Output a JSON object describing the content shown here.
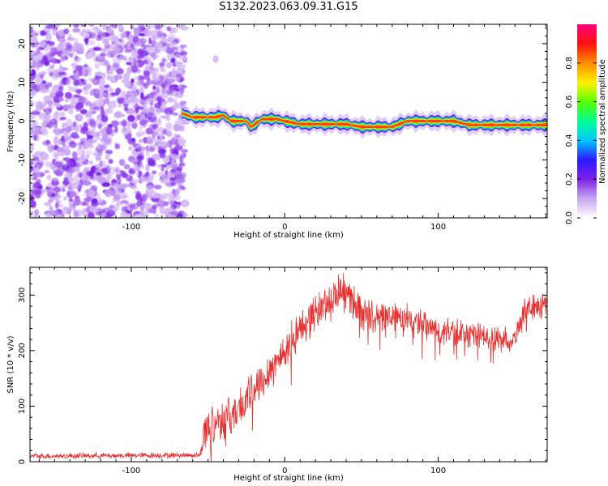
{
  "figure_title": "S132.2023.063.09.31.G15",
  "chart_data": [
    {
      "type": "heatmap",
      "xlabel": "Height of straight line (km)",
      "ylabel": "Frequency (Hz)",
      "xlim": [
        -166,
        171
      ],
      "ylim": [
        -25,
        25
      ],
      "x_ticks": [
        -100,
        0,
        100
      ],
      "y_ticks": [
        -20,
        -10,
        0,
        10,
        20
      ],
      "colorbar": {
        "label": "Normalized spectral amplitude",
        "range": [
          0,
          1
        ],
        "ticks": [
          0.0,
          0.2,
          0.4,
          0.6,
          0.8
        ],
        "colormap": [
          "#ffffff",
          "#c9a6f2",
          "#7d1fe6",
          "#2a1bff",
          "#00c8ff",
          "#00ff90",
          "#5aff00",
          "#fff000",
          "#ff8c00",
          "#ff1010",
          "#ff0080"
        ]
      },
      "noise_region_x": [
        -166,
        -67
      ],
      "signal_track": [
        {
          "x": -67,
          "freq": 2.0
        },
        {
          "x": -60,
          "freq": 1.0
        },
        {
          "x": -45,
          "freq": 1.0
        },
        {
          "x": -40,
          "freq": 1.5
        },
        {
          "x": -35,
          "freq": 0.0
        },
        {
          "x": -25,
          "freq": 0.0
        },
        {
          "x": -22,
          "freq": -1.5
        },
        {
          "x": -15,
          "freq": 0.5
        },
        {
          "x": -5,
          "freq": 0.5
        },
        {
          "x": 0,
          "freq": 0.0
        },
        {
          "x": 10,
          "freq": -0.8
        },
        {
          "x": 40,
          "freq": -0.8
        },
        {
          "x": 50,
          "freq": -1.5
        },
        {
          "x": 70,
          "freq": -1.5
        },
        {
          "x": 80,
          "freq": 0.0
        },
        {
          "x": 110,
          "freq": 0.0
        },
        {
          "x": 120,
          "freq": -1.0
        },
        {
          "x": 140,
          "freq": -1.0
        },
        {
          "x": 150,
          "freq": -1.0
        },
        {
          "x": 171,
          "freq": -1.0
        }
      ],
      "isolated_blob": {
        "x": -45,
        "freq": 16
      }
    },
    {
      "type": "line",
      "xlabel": "Height of straight line (km)",
      "ylabel": "SNR (10 * v/v)",
      "xlim": [
        -166,
        171
      ],
      "ylim": [
        0,
        350
      ],
      "x_ticks": [
        -100,
        0,
        100
      ],
      "y_ticks": [
        0,
        100,
        200,
        300
      ],
      "color": "#e83030",
      "trend": [
        {
          "x": -166,
          "y": 10
        },
        {
          "x": -55,
          "y": 12
        },
        {
          "x": -52,
          "y": 60
        },
        {
          "x": -45,
          "y": 75
        },
        {
          "x": -35,
          "y": 80
        },
        {
          "x": -25,
          "y": 110
        },
        {
          "x": -15,
          "y": 150
        },
        {
          "x": -5,
          "y": 180
        },
        {
          "x": 5,
          "y": 220
        },
        {
          "x": 15,
          "y": 255
        },
        {
          "x": 25,
          "y": 280
        },
        {
          "x": 35,
          "y": 305
        },
        {
          "x": 42,
          "y": 300
        },
        {
          "x": 50,
          "y": 270
        },
        {
          "x": 60,
          "y": 255
        },
        {
          "x": 70,
          "y": 265
        },
        {
          "x": 80,
          "y": 255
        },
        {
          "x": 90,
          "y": 245
        },
        {
          "x": 100,
          "y": 235
        },
        {
          "x": 120,
          "y": 230
        },
        {
          "x": 140,
          "y": 222
        },
        {
          "x": 150,
          "y": 220
        },
        {
          "x": 155,
          "y": 270
        },
        {
          "x": 171,
          "y": 285
        }
      ],
      "noise_amplitude": [
        {
          "x": -166,
          "a": 6
        },
        {
          "x": -55,
          "a": 6
        },
        {
          "x": -52,
          "a": 45
        },
        {
          "x": 40,
          "a": 40
        },
        {
          "x": 60,
          "a": 35
        },
        {
          "x": 150,
          "a": 25
        },
        {
          "x": 171,
          "a": 30
        }
      ]
    }
  ]
}
